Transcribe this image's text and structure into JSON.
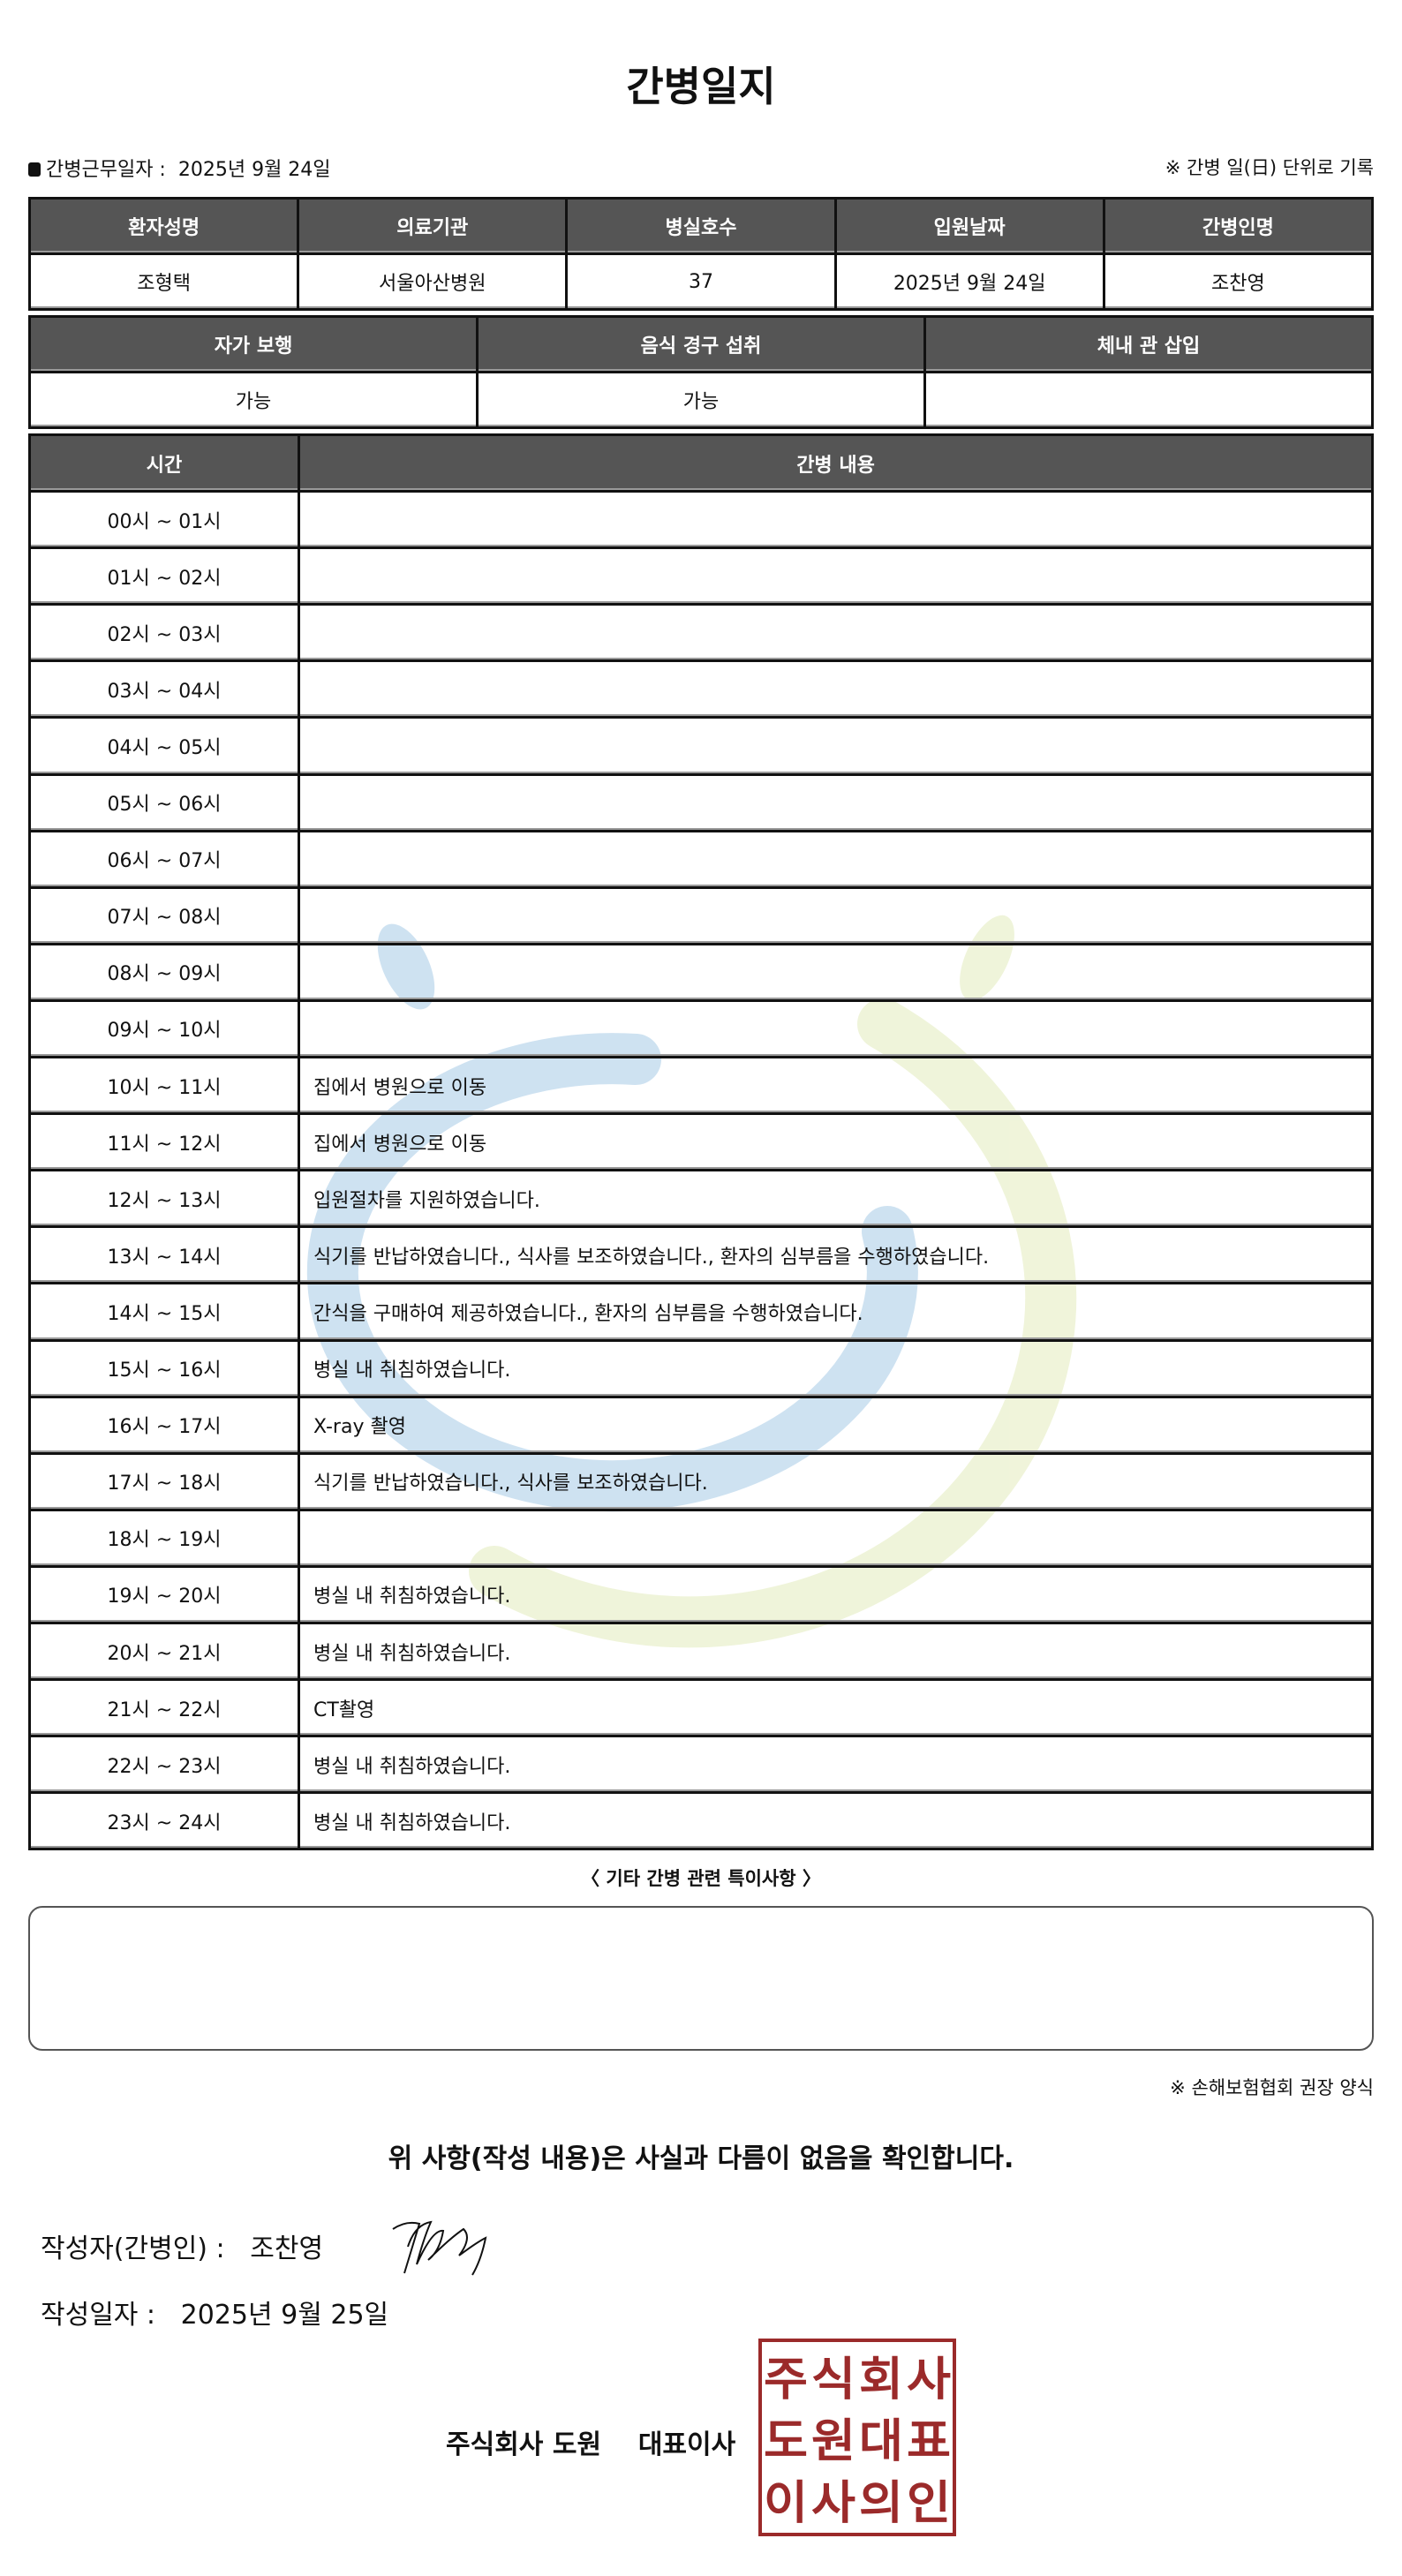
{
  "title": "간병일지",
  "work_date": {
    "label": "간병근무일자  :",
    "value": "2025년 9월 24일"
  },
  "note_top": "※ 간병 일(日) 단위로 기록",
  "patient_table": {
    "headers": [
      "환자성명",
      "의료기관",
      "병실호수",
      "입원날짜",
      "간병인명"
    ],
    "values": [
      "조형택",
      "서울아산병원",
      "37",
      "2025년 9월 24일",
      "조찬영"
    ]
  },
  "status_table": {
    "headers": [
      "자가 보행",
      "음식 경구 섭취",
      "체내 관 삽입"
    ],
    "values": [
      "가능",
      "가능",
      ""
    ]
  },
  "log_table": {
    "headers": [
      "시간",
      "간병 내용"
    ],
    "rows": [
      {
        "time": "00시 ~ 01시",
        "content": ""
      },
      {
        "time": "01시 ~ 02시",
        "content": ""
      },
      {
        "time": "02시 ~ 03시",
        "content": ""
      },
      {
        "time": "03시 ~ 04시",
        "content": ""
      },
      {
        "time": "04시 ~ 05시",
        "content": ""
      },
      {
        "time": "05시 ~ 06시",
        "content": ""
      },
      {
        "time": "06시 ~ 07시",
        "content": ""
      },
      {
        "time": "07시 ~ 08시",
        "content": ""
      },
      {
        "time": "08시 ~ 09시",
        "content": ""
      },
      {
        "time": "09시 ~ 10시",
        "content": ""
      },
      {
        "time": "10시 ~ 11시",
        "content": "집에서 병원으로 이동"
      },
      {
        "time": "11시 ~ 12시",
        "content": "집에서 병원으로 이동"
      },
      {
        "time": "12시 ~ 13시",
        "content": "입원절차를 지원하였습니다."
      },
      {
        "time": "13시 ~ 14시",
        "content": "식기를 반납하였습니다., 식사를 보조하였습니다., 환자의 심부름을 수행하였습니다."
      },
      {
        "time": "14시 ~ 15시",
        "content": "간식을 구매하여 제공하였습니다., 환자의 심부름을 수행하였습니다."
      },
      {
        "time": "15시 ~ 16시",
        "content": "병실 내 취침하였습니다."
      },
      {
        "time": "16시 ~ 17시",
        "content": "X-ray 촬영"
      },
      {
        "time": "17시 ~ 18시",
        "content": "식기를 반납하였습니다., 식사를 보조하였습니다."
      },
      {
        "time": "18시 ~ 19시",
        "content": ""
      },
      {
        "time": "19시 ~ 20시",
        "content": "병실 내 취침하였습니다."
      },
      {
        "time": "20시 ~ 21시",
        "content": "병실 내 취침하였습니다."
      },
      {
        "time": "21시 ~ 22시",
        "content": "CT촬영"
      },
      {
        "time": "22시 ~ 23시",
        "content": "병실 내 취침하였습니다."
      },
      {
        "time": "23시 ~ 24시",
        "content": "병실 내 취침하였습니다."
      }
    ]
  },
  "etc": {
    "label": "〈 기타 간병 관련 특이사항 〉",
    "value": ""
  },
  "note_bottom": "※ 손해보험협회 권장 양식",
  "confirm": "위 사항(작성 내용)은 사실과 다름이 없음을 확인합니다.",
  "writer": {
    "label": "작성자(간병인) :",
    "name": "조찬영"
  },
  "write_date": {
    "label": "작성일자 :",
    "value": "2025년 9월 25일"
  },
  "company": {
    "name": "주식회사 도원",
    "role": "대표이사"
  },
  "seal": {
    "text": "주식회사도원대표이사의인",
    "color": "#9b2a2a"
  },
  "watermark": {
    "colors": [
      "#c9dff0",
      "#eef3d6"
    ]
  }
}
